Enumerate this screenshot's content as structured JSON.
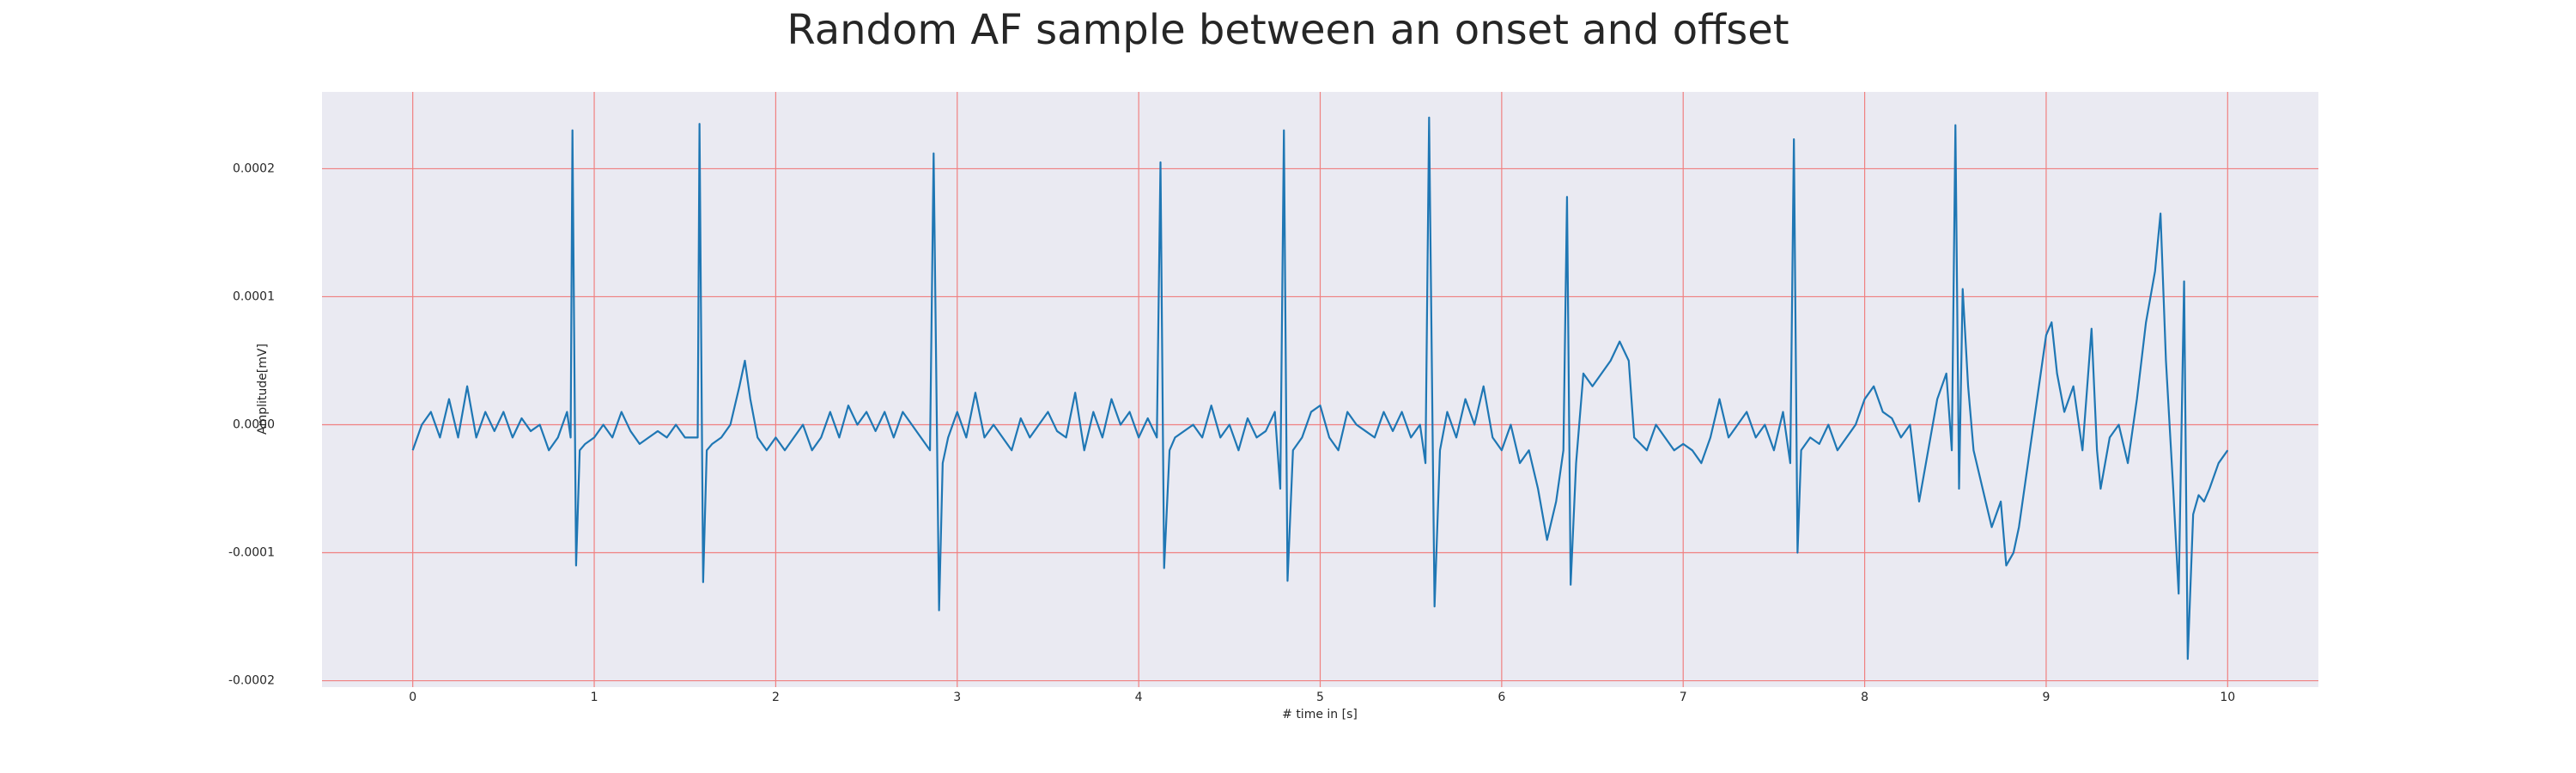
{
  "chart_data": {
    "type": "line",
    "title": "Random AF sample between an onset and offset",
    "xlabel": "# time in [s]",
    "ylabel": "Amplitude[mV]",
    "color": "#1f77b4",
    "grid": true,
    "xlim": [
      -0.5,
      10.5
    ],
    "ylim": [
      -0.000205,
      0.00026
    ],
    "xticks": [
      0,
      1,
      2,
      3,
      4,
      5,
      6,
      7,
      8,
      9,
      10
    ],
    "yticks": [
      -0.0002,
      -0.0001,
      {
        "value": 0,
        "label": "0.0000"
      },
      0.0001,
      0.0002
    ],
    "x": [
      0,
      0.05,
      0.1,
      0.15,
      0.2,
      0.25,
      0.3,
      0.35,
      0.4,
      0.45,
      0.5,
      0.55,
      0.6,
      0.65,
      0.7,
      0.75,
      0.8,
      0.85,
      0.87,
      0.88,
      0.9,
      0.92,
      0.95,
      1.0,
      1.05,
      1.1,
      1.15,
      1.2,
      1.25,
      1.3,
      1.35,
      1.4,
      1.45,
      1.5,
      1.55,
      1.57,
      1.58,
      1.6,
      1.62,
      1.65,
      1.7,
      1.75,
      1.8,
      1.83,
      1.86,
      1.9,
      1.95,
      2.0,
      2.05,
      2.1,
      2.15,
      2.2,
      2.25,
      2.3,
      2.35,
      2.4,
      2.45,
      2.5,
      2.55,
      2.6,
      2.65,
      2.7,
      2.75,
      2.8,
      2.85,
      2.87,
      2.9,
      2.92,
      2.95,
      3.0,
      3.05,
      3.1,
      3.15,
      3.2,
      3.25,
      3.3,
      3.35,
      3.4,
      3.45,
      3.5,
      3.55,
      3.6,
      3.65,
      3.7,
      3.75,
      3.8,
      3.85,
      3.9,
      3.95,
      4.0,
      4.05,
      4.1,
      4.12,
      4.14,
      4.17,
      4.2,
      4.3,
      4.35,
      4.4,
      4.45,
      4.5,
      4.55,
      4.6,
      4.65,
      4.7,
      4.75,
      4.78,
      4.8,
      4.82,
      4.85,
      4.9,
      4.95,
      5.0,
      5.05,
      5.1,
      5.15,
      5.2,
      5.25,
      5.3,
      5.35,
      5.4,
      5.45,
      5.5,
      5.55,
      5.58,
      5.6,
      5.63,
      5.66,
      5.7,
      5.75,
      5.8,
      5.85,
      5.9,
      5.95,
      6.0,
      6.05,
      6.1,
      6.15,
      6.2,
      6.25,
      6.3,
      6.34,
      6.36,
      6.38,
      6.41,
      6.45,
      6.5,
      6.55,
      6.6,
      6.65,
      6.7,
      6.73,
      6.8,
      6.85,
      6.9,
      6.95,
      7.0,
      7.05,
      7.1,
      7.15,
      7.2,
      7.25,
      7.3,
      7.35,
      7.4,
      7.45,
      7.5,
      7.55,
      7.59,
      7.61,
      7.63,
      7.65,
      7.7,
      7.75,
      7.8,
      7.85,
      7.9,
      7.95,
      8.0,
      8.05,
      8.1,
      8.15,
      8.2,
      8.25,
      8.3,
      8.35,
      8.4,
      8.45,
      8.48,
      8.5,
      8.52,
      8.54,
      8.57,
      8.6,
      8.65,
      8.7,
      8.75,
      8.78,
      8.82,
      8.85,
      8.9,
      8.95,
      9.0,
      9.03,
      9.06,
      9.1,
      9.15,
      9.2,
      9.25,
      9.28,
      9.3,
      9.35,
      9.4,
      9.45,
      9.5,
      9.55,
      9.6,
      9.63,
      9.66,
      9.7,
      9.73,
      9.76,
      9.78,
      9.81,
      9.84,
      9.87,
      9.9,
      9.95,
      10.0
    ],
    "values": [
      -2e-05,
      0,
      1e-05,
      -1e-05,
      2e-05,
      -1e-05,
      3e-05,
      -1e-05,
      1e-05,
      -5e-06,
      1e-05,
      -1e-05,
      5e-06,
      -5e-06,
      0,
      -2e-05,
      -1e-05,
      1e-05,
      -1e-05,
      0.00023,
      -0.00011,
      -2e-05,
      -1.5e-05,
      -1e-05,
      0,
      -1e-05,
      1e-05,
      -5e-06,
      -1.5e-05,
      -1e-05,
      -5e-06,
      -1e-05,
      0,
      -1e-05,
      -1e-05,
      -1e-05,
      0.000235,
      -0.000123,
      -2e-05,
      -1.5e-05,
      -1e-05,
      0,
      3e-05,
      5e-05,
      2e-05,
      -1e-05,
      -2e-05,
      -1e-05,
      -2e-05,
      -1e-05,
      0,
      -2e-05,
      -1e-05,
      1e-05,
      -1e-05,
      1.5e-05,
      0,
      1e-05,
      -5e-06,
      1e-05,
      -1e-05,
      1e-05,
      0,
      -1e-05,
      -2e-05,
      0.000212,
      -0.000145,
      -3e-05,
      -1e-05,
      1e-05,
      -1e-05,
      2.5e-05,
      -1e-05,
      0,
      -1e-05,
      -2e-05,
      5e-06,
      -1e-05,
      0,
      1e-05,
      -5e-06,
      -1e-05,
      2.5e-05,
      -2e-05,
      1e-05,
      -1e-05,
      2e-05,
      0,
      1e-05,
      -1e-05,
      5e-06,
      -1e-05,
      0.000205,
      -0.000112,
      -2e-05,
      -1e-05,
      0,
      -1e-05,
      1.5e-05,
      -1e-05,
      0,
      -2e-05,
      5e-06,
      -1e-05,
      -5e-06,
      1e-05,
      -5e-05,
      0.00023,
      -0.000122,
      -2e-05,
      -1e-05,
      1e-05,
      1.5e-05,
      -1e-05,
      -2e-05,
      1e-05,
      0,
      -5e-06,
      -1e-05,
      1e-05,
      -5e-06,
      1e-05,
      -1e-05,
      0,
      -3e-05,
      0.00024,
      -0.000142,
      -2e-05,
      1e-05,
      -1e-05,
      2e-05,
      0,
      3e-05,
      -1e-05,
      -2e-05,
      0,
      -3e-05,
      -2e-05,
      -5e-05,
      -9e-05,
      -6e-05,
      -2e-05,
      0.000178,
      -0.000125,
      -3e-05,
      4e-05,
      3e-05,
      4e-05,
      5e-05,
      6.5e-05,
      5e-05,
      -1e-05,
      -2e-05,
      0,
      -1e-05,
      -2e-05,
      -1.5e-05,
      -2e-05,
      -3e-05,
      -1e-05,
      2e-05,
      -1e-05,
      0,
      1e-05,
      -1e-05,
      0,
      -2e-05,
      1e-05,
      -3e-05,
      0.000223,
      -0.0001,
      -2e-05,
      -1e-05,
      -1.5e-05,
      0,
      -2e-05,
      -1e-05,
      0,
      2e-05,
      3e-05,
      1e-05,
      5e-06,
      -1e-05,
      0,
      -6e-05,
      -2e-05,
      2e-05,
      4e-05,
      -2e-05,
      0.000234,
      -5e-05,
      0.000106,
      3e-05,
      -2e-05,
      -5e-05,
      -8e-05,
      -6e-05,
      -0.00011,
      -0.0001,
      -8e-05,
      -3e-05,
      2e-05,
      7e-05,
      8e-05,
      4e-05,
      1e-05,
      3e-05,
      -2e-05,
      7.5e-05,
      -2e-05,
      -5e-05,
      -1e-05,
      0,
      -3e-05,
      2e-05,
      8e-05,
      0.00012,
      0.000165,
      5e-05,
      -5e-05,
      -0.000132,
      0.000112,
      -0.000183,
      -7e-05,
      -5.5e-05,
      -6e-05,
      -5e-05,
      -3e-05,
      -2e-05
    ]
  }
}
